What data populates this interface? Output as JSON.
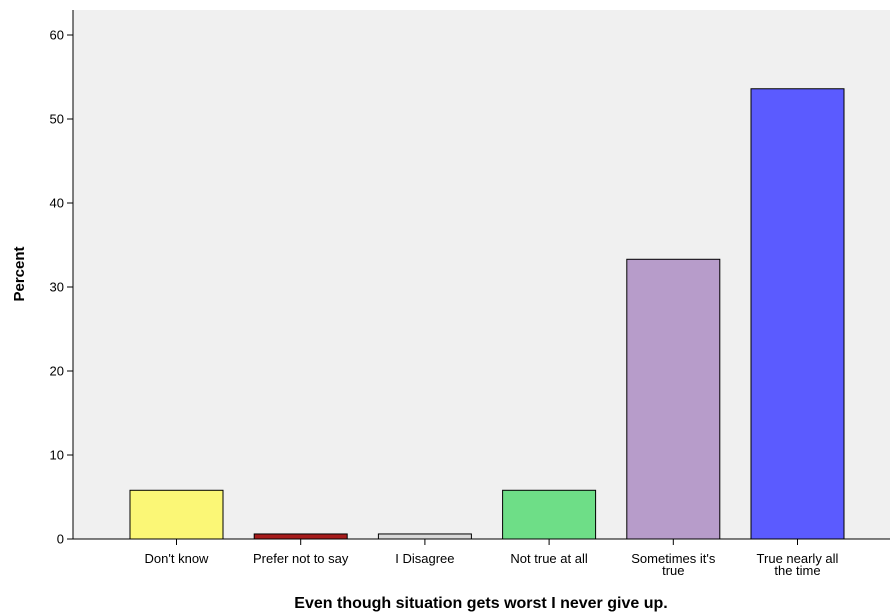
{
  "chart_data": {
    "type": "bar",
    "categories": [
      [
        "Don't know"
      ],
      [
        "Prefer not to say"
      ],
      [
        "I Disagree"
      ],
      [
        "Not true at all"
      ],
      [
        "Sometimes it's",
        "true"
      ],
      [
        "True nearly all",
        "the time"
      ]
    ],
    "values": [
      5.8,
      0.6,
      0.6,
      5.8,
      33.3,
      53.6
    ],
    "colors": [
      "#fbf776",
      "#a61b1b",
      "#d9d9d9",
      "#6ede87",
      "#b79cca",
      "#5b5bff"
    ],
    "title": "",
    "xlabel": "Even though situation gets worst I never give up.",
    "ylabel": "Percent",
    "ylim": [
      0,
      63
    ],
    "yticks": [
      0,
      10,
      20,
      30,
      40,
      50,
      60
    ],
    "grid": false,
    "plot_background": "#f0f0f0"
  }
}
